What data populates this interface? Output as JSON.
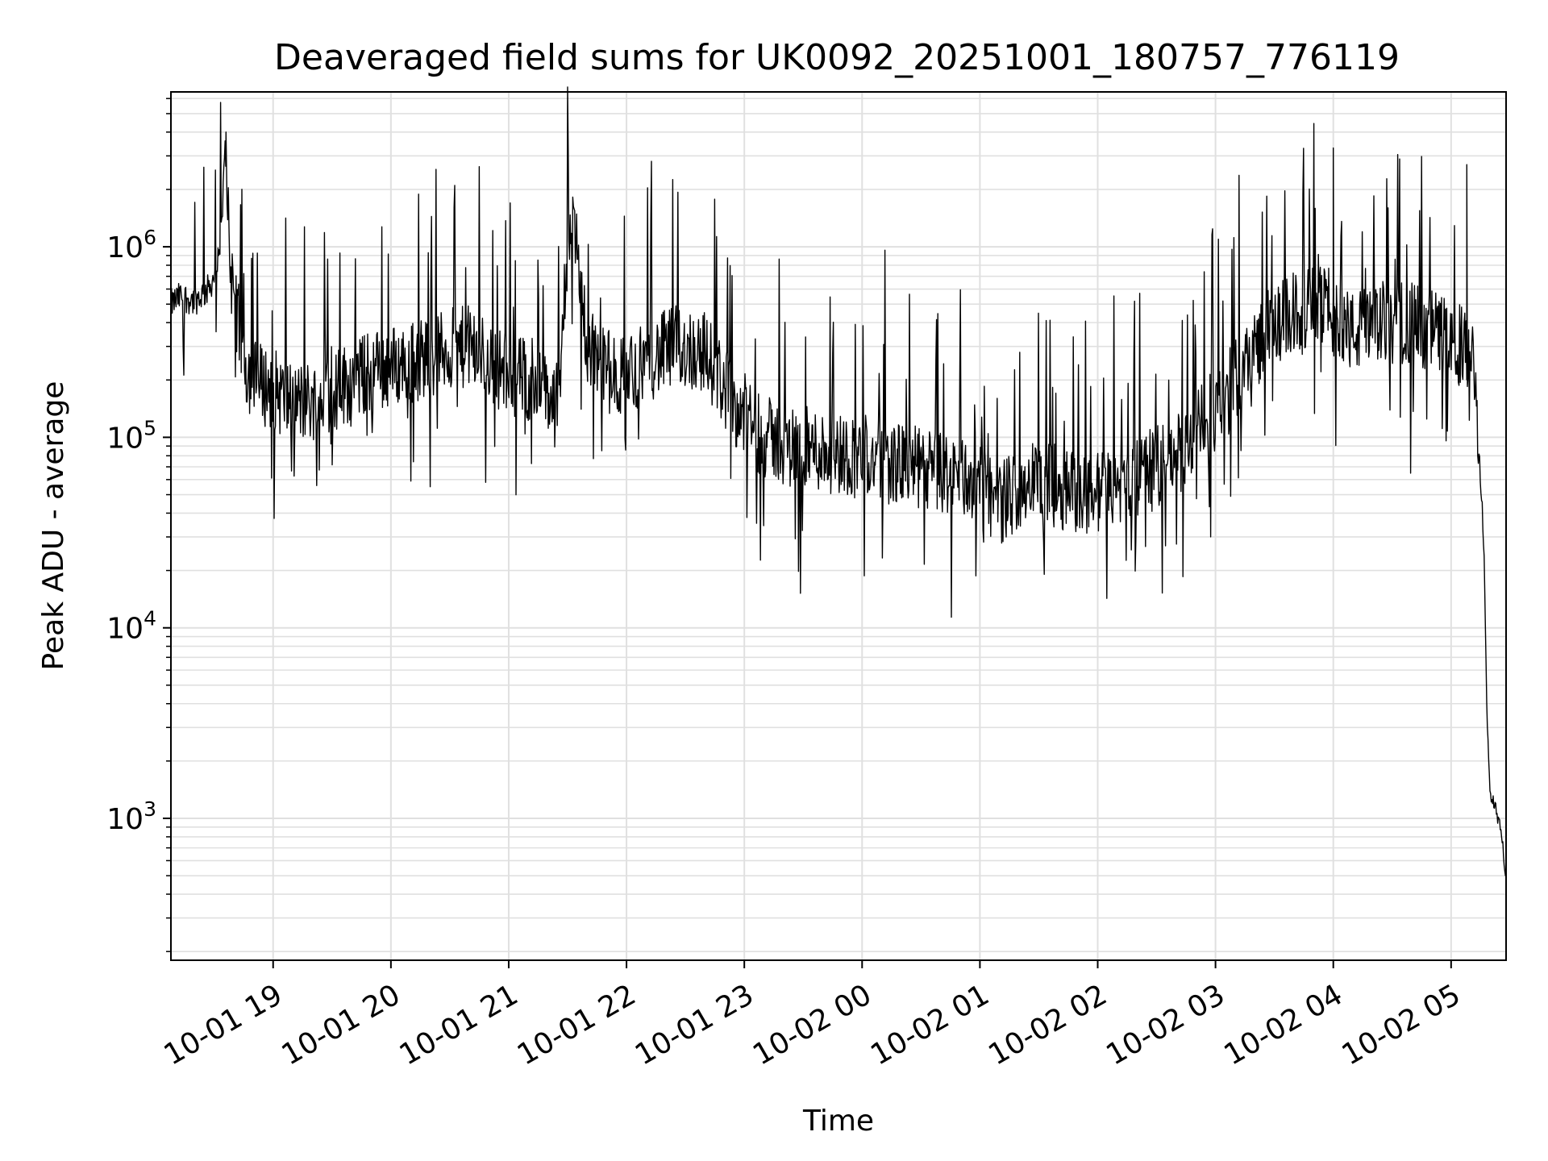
{
  "chart_data": {
    "type": "line",
    "title": "Deaveraged field sums for UK0092_20251001_180757_776119",
    "xlabel": "Time",
    "ylabel": "Peak ADU - average",
    "yscale": "log",
    "ylim": [
      180,
      6500000
    ],
    "xlim": [
      "2025-10-01 18:07:57",
      "2025-10-02 05:28:00"
    ],
    "grid": true,
    "line_color": "#000000",
    "grid_color": "#e0e0e0",
    "x_ticks": [
      {
        "t": "2025-10-01 19:00",
        "label": "10-01 19"
      },
      {
        "t": "2025-10-01 20:00",
        "label": "10-01 20"
      },
      {
        "t": "2025-10-01 21:00",
        "label": "10-01 21"
      },
      {
        "t": "2025-10-01 22:00",
        "label": "10-01 22"
      },
      {
        "t": "2025-10-01 23:00",
        "label": "10-01 23"
      },
      {
        "t": "2025-10-02 00:00",
        "label": "10-02 00"
      },
      {
        "t": "2025-10-02 01:00",
        "label": "10-02 01"
      },
      {
        "t": "2025-10-02 02:00",
        "label": "10-02 02"
      },
      {
        "t": "2025-10-02 03:00",
        "label": "10-02 03"
      },
      {
        "t": "2025-10-02 04:00",
        "label": "10-02 04"
      },
      {
        "t": "2025-10-02 05:00",
        "label": "10-02 05"
      }
    ],
    "y_ticks": [
      {
        "value": 1000,
        "base": "10",
        "exp": "3"
      },
      {
        "value": 10000,
        "base": "10",
        "exp": "4"
      },
      {
        "value": 100000,
        "base": "10",
        "exp": "5"
      },
      {
        "value": 1000000,
        "base": "10",
        "exp": "6"
      }
    ],
    "series": [
      {
        "x": [
          "2025-10-01 18:07:57",
          "2025-10-01 18:13",
          "2025-10-01 18:20",
          "2025-10-01 18:27",
          "2025-10-01 18:30",
          "2025-10-01 18:33",
          "2025-10-01 18:36",
          "2025-10-01 18:38",
          "2025-10-01 18:40",
          "2025-10-01 18:45",
          "2025-10-01 18:50",
          "2025-10-01 19:00",
          "2025-10-01 19:10",
          "2025-10-01 19:25",
          "2025-10-01 19:40",
          "2025-10-01 19:55",
          "2025-10-01 20:10",
          "2025-10-01 20:25",
          "2025-10-01 20:40",
          "2025-10-01 20:55",
          "2025-10-01 21:10",
          "2025-10-01 21:25",
          "2025-10-01 21:32",
          "2025-10-01 21:40",
          "2025-10-01 21:55",
          "2025-10-01 22:10",
          "2025-10-01 22:25",
          "2025-10-01 22:40",
          "2025-10-01 22:55",
          "2025-10-01 23:10",
          "2025-10-01 23:25",
          "2025-10-01 23:40",
          "2025-10-01 23:55",
          "2025-10-02 00:10",
          "2025-10-02 00:25",
          "2025-10-02 00:40",
          "2025-10-02 00:55",
          "2025-10-02 01:10",
          "2025-10-02 01:25",
          "2025-10-02 01:40",
          "2025-10-02 01:55",
          "2025-10-02 02:10",
          "2025-10-02 02:25",
          "2025-10-02 02:40",
          "2025-10-02 02:55",
          "2025-10-02 03:10",
          "2025-10-02 03:25",
          "2025-10-02 03:40",
          "2025-10-02 03:55",
          "2025-10-02 04:10",
          "2025-10-02 04:25",
          "2025-10-02 04:40",
          "2025-10-02 04:55",
          "2025-10-02 05:05",
          "2025-10-02 05:11",
          "2025-10-02 05:14",
          "2025-10-02 05:16",
          "2025-10-02 05:17",
          "2025-10-02 05:18",
          "2025-10-02 05:19",
          "2025-10-02 05:20",
          "2025-10-02 05:22",
          "2025-10-02 05:25",
          "2025-10-02 05:28"
        ],
        "y": [
          500000,
          550000,
          520000,
          600000,
          700000,
          900000,
          4000000,
          800000,
          600000,
          250000,
          200000,
          180000,
          150000,
          160000,
          200000,
          230000,
          250000,
          280000,
          300000,
          230000,
          200000,
          150000,
          1800000,
          300000,
          200000,
          250000,
          300000,
          280000,
          150000,
          100000,
          90000,
          85000,
          80000,
          75000,
          70000,
          65000,
          60000,
          45000,
          60000,
          55000,
          50000,
          55000,
          65000,
          80000,
          120000,
          200000,
          350000,
          450000,
          500000,
          350000,
          400000,
          400000,
          350000,
          300000,
          250000,
          90000,
          40000,
          20000,
          5000,
          2000,
          1300,
          1200,
          900,
          500
        ]
      }
    ]
  }
}
